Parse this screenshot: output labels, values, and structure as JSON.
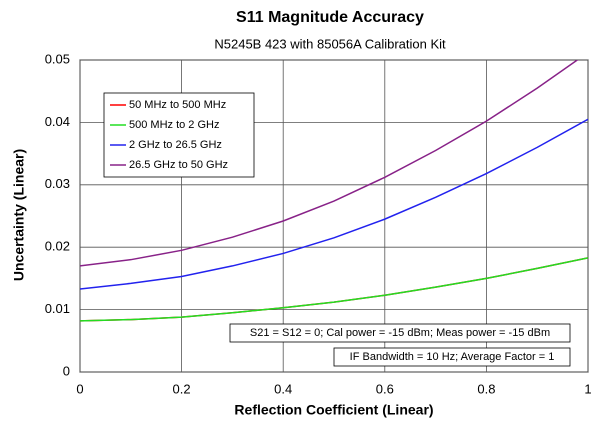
{
  "chart_data": {
    "type": "line",
    "title": "S11 Magnitude Accuracy",
    "subtitle": "N5245B 423 with 85056A Calibration Kit",
    "xlabel": "Reflection Coefficient (Linear)",
    "ylabel": "Uncertainty (Linear)",
    "x": [
      0,
      0.1,
      0.2,
      0.3,
      0.4,
      0.5,
      0.6,
      0.7,
      0.8,
      0.9,
      1
    ],
    "series": [
      {
        "name": "50 MHz to 500 MHz",
        "color": "#ff0000",
        "values": [
          0.0082,
          0.0084,
          0.0088,
          0.0095,
          0.0103,
          0.0112,
          0.0123,
          0.0136,
          0.015,
          0.0166,
          0.0183
        ]
      },
      {
        "name": "500 MHz to 2 GHz",
        "color": "#22dd22",
        "values": [
          0.0082,
          0.0084,
          0.0088,
          0.0095,
          0.0103,
          0.0112,
          0.0123,
          0.0136,
          0.015,
          0.0166,
          0.0183
        ]
      },
      {
        "name": "2 GHz to 26.5 GHz",
        "color": "#2222ee",
        "values": [
          0.0133,
          0.0142,
          0.0153,
          0.017,
          0.019,
          0.0215,
          0.0245,
          0.028,
          0.0318,
          0.036,
          0.0405
        ]
      },
      {
        "name": "26.5 GHz to 50 GHz",
        "color": "#882288",
        "values": [
          0.017,
          0.018,
          0.0195,
          0.0216,
          0.0242,
          0.0274,
          0.0312,
          0.0355,
          0.0402,
          0.0455,
          0.0512
        ]
      }
    ],
    "xlim": [
      0,
      1
    ],
    "xticks": [
      0,
      0.2,
      0.4,
      0.6,
      0.8,
      1
    ],
    "ylim": [
      0,
      0.05
    ],
    "yticks": [
      0,
      0.01,
      0.02,
      0.03,
      0.04,
      0.05
    ],
    "grid": true,
    "legend": "upper left",
    "annotations": [
      "S21 = S12 = 0; Cal power = -15 dBm; Meas power = -15 dBm",
      "IF Bandwidth = 10 Hz; Average Factor = 1"
    ]
  }
}
